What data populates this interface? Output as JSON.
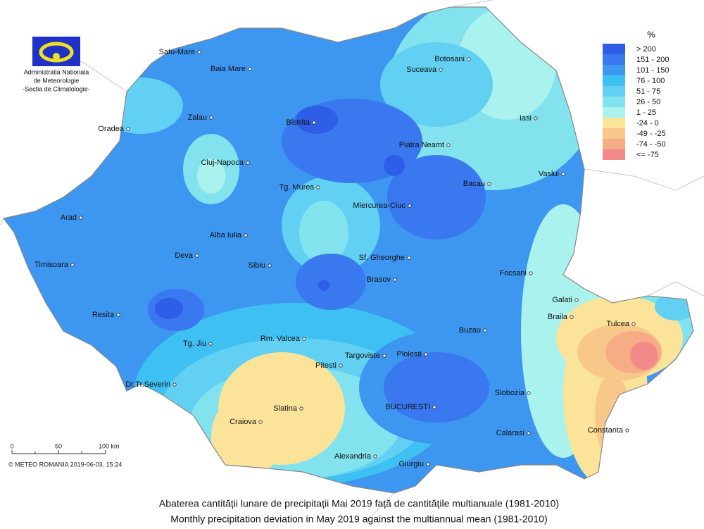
{
  "logo": {
    "lines": [
      "Administratia Nationala",
      "de Meteorologie",
      "-Sectia de Climatologie-"
    ]
  },
  "legend": {
    "title": "%",
    "items": [
      {
        "label": "> 200",
        "color": "#2e5ee8"
      },
      {
        "label": "151 - 200",
        "color": "#3a78ef"
      },
      {
        "label": "101 - 150",
        "color": "#3d96f0"
      },
      {
        "label": "76 - 100",
        "color": "#3fc0f3"
      },
      {
        "label": "51 - 75",
        "color": "#62d0f3"
      },
      {
        "label": "26 - 50",
        "color": "#82e3ef"
      },
      {
        "label": "1 - 25",
        "color": "#aaf2ee"
      },
      {
        "label": "-24 - 0",
        "color": "#fbe39a"
      },
      {
        "label": "-49 - -25",
        "color": "#f8c88a"
      },
      {
        "label": "-74 - -50",
        "color": "#f6ad85"
      },
      {
        "label": "<= -75",
        "color": "#f38a8a"
      }
    ]
  },
  "cities": [
    "Satu-Mare",
    "Baia Mare",
    "Botosani",
    "Suceava",
    "Zalau",
    "Oradea",
    "Bistrita",
    "Iasi",
    "Piatra Neamt",
    "Cluj-Napoca",
    "Vaslui",
    "Tg. Mures",
    "Bacau",
    "Arad",
    "Miercurea-Ciuc",
    "Alba Iulia",
    "Sf. Gheorghe",
    "Deva",
    "Timisoara",
    "Sibiu",
    "Focsani",
    "Brasov",
    "Galati",
    "Braila",
    "Tulcea",
    "Resita",
    "Buzau",
    "Tg. Jiu",
    "Rm. Valcea",
    "Targoviste",
    "Ploiesti",
    "Pitesti",
    "Dr.Tr.Severin",
    "Slobozia",
    "Slatina",
    "BUCURESTI",
    "Craiova",
    "Calarasi",
    "Constanta",
    "Alexandria",
    "Giurgiu"
  ],
  "scale": {
    "labels": [
      "0",
      "50",
      "100 km"
    ]
  },
  "credit": "© METEO ROMANIA 2019-06-03, 15:24",
  "caption": [
    "Abaterea cantității lunare de precipitații  Mai 2019  față de cantitățile multianuale (1981-2010)",
    "Monthly precipitation deviation in  May 2019  against the multiannual mean (1981-2010)"
  ]
}
